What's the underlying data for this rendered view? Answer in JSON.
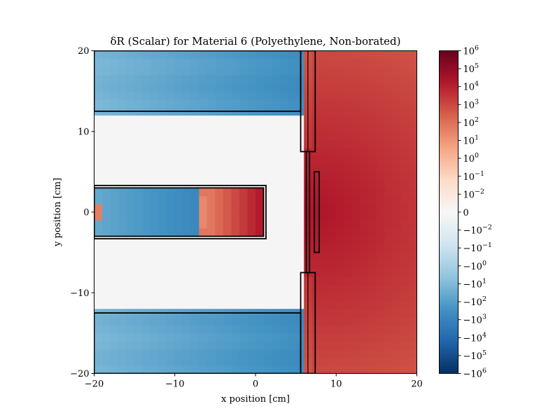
{
  "chart_data": {
    "type": "heatmap",
    "title": "δR (Scalar) for Material 6 (Polyethylene, Non-borated)",
    "xlabel": "x position [cm]",
    "ylabel": "y position [cm]",
    "xlim": [
      -20,
      20
    ],
    "ylim": [
      -20,
      20
    ],
    "x_ticks": [
      {
        "value": -20,
        "label": "−20"
      },
      {
        "value": -10,
        "label": "−10"
      },
      {
        "value": 0,
        "label": "0"
      },
      {
        "value": 10,
        "label": "10"
      },
      {
        "value": 20,
        "label": "20"
      }
    ],
    "y_ticks": [
      {
        "value": -20,
        "label": "−20"
      },
      {
        "value": -10,
        "label": "−10"
      },
      {
        "value": 0,
        "label": "0"
      },
      {
        "value": 10,
        "label": "10"
      },
      {
        "value": 20,
        "label": "20"
      }
    ],
    "grid": false,
    "colormap": "RdBu_r (symlog)",
    "colorbar": {
      "scale": "symlog",
      "range": [
        -1000000,
        1000000
      ],
      "ticks": [
        {
          "base": "10",
          "exp": "6",
          "sign": ""
        },
        {
          "base": "10",
          "exp": "5",
          "sign": ""
        },
        {
          "base": "10",
          "exp": "4",
          "sign": ""
        },
        {
          "base": "10",
          "exp": "3",
          "sign": ""
        },
        {
          "base": "10",
          "exp": "2",
          "sign": ""
        },
        {
          "base": "10",
          "exp": "1",
          "sign": ""
        },
        {
          "base": "10",
          "exp": "0",
          "sign": ""
        },
        {
          "base": "10",
          "exp": "−1",
          "sign": ""
        },
        {
          "base": "10",
          "exp": "−2",
          "sign": ""
        },
        {
          "base": "0",
          "exp": "",
          "sign": ""
        },
        {
          "base": "10",
          "exp": "−2",
          "sign": "−"
        },
        {
          "base": "10",
          "exp": "−1",
          "sign": "−"
        },
        {
          "base": "10",
          "exp": "0",
          "sign": "−"
        },
        {
          "base": "10",
          "exp": "1",
          "sign": "−"
        },
        {
          "base": "10",
          "exp": "2",
          "sign": "−"
        },
        {
          "base": "10",
          "exp": "3",
          "sign": "−"
        },
        {
          "base": "10",
          "exp": "4",
          "sign": "−"
        },
        {
          "base": "10",
          "exp": "5",
          "sign": "−"
        },
        {
          "base": "10",
          "exp": "6",
          "sign": "−"
        }
      ]
    },
    "regions": [
      {
        "name": "upper-left-block",
        "x": [
          -20,
          5.6
        ],
        "y": [
          12.5,
          20
        ],
        "value_range": [
          -600,
          -20
        ],
        "trend": "more negative toward x≈5"
      },
      {
        "name": "lower-left-block",
        "x": [
          -20,
          5.6
        ],
        "y": [
          -20,
          -12.5
        ],
        "value_range": [
          -600,
          -20
        ],
        "trend": "more negative toward x≈5"
      },
      {
        "name": "center-rod-negative",
        "x": [
          -20,
          -7
        ],
        "y": [
          -3,
          3
        ],
        "value_range": [
          -1000,
          -30
        ]
      },
      {
        "name": "center-rod-positive",
        "x": [
          -7,
          1.5
        ],
        "y": [
          -3,
          3
        ],
        "value_range": [
          3,
          30000
        ],
        "trend": "rising toward x≈1"
      },
      {
        "name": "right-slab",
        "x": [
          5.6,
          20
        ],
        "y": [
          -20,
          20
        ],
        "peak": {
          "x": 8,
          "y": 0,
          "value": 20000
        },
        "value_range": [
          5,
          20000
        ]
      },
      {
        "name": "central-void",
        "x": [
          -20,
          5.6
        ],
        "y": [
          -12.5,
          12.5
        ],
        "value": 0
      }
    ],
    "outlines": [
      {
        "name": "upper-shield-block",
        "x": [
          -20,
          5.6
        ],
        "y": [
          12.5,
          20
        ]
      },
      {
        "name": "lower-shield-block",
        "x": [
          -20,
          5.6
        ],
        "y": [
          -20,
          -12.5
        ]
      },
      {
        "name": "rod-outer",
        "x": [
          -20,
          1.3
        ],
        "y": [
          -3.3,
          3.3
        ]
      },
      {
        "name": "rod-inner",
        "x": [
          -20,
          1.0
        ],
        "y": [
          -3.0,
          3.0
        ]
      },
      {
        "name": "upper-plate",
        "x": [
          5.6,
          7.4
        ],
        "y": [
          7.5,
          20
        ]
      },
      {
        "name": "lower-plate",
        "x": [
          5.6,
          7.4
        ],
        "y": [
          -20,
          -7.5
        ]
      },
      {
        "name": "thin-plate",
        "x": [
          6.3,
          6.7
        ],
        "y": [
          -7.5,
          7.5
        ]
      },
      {
        "name": "detector-strip",
        "x": [
          7.3,
          7.9
        ],
        "y": [
          -5,
          5
        ]
      },
      {
        "name": "plate-divider",
        "x": [
          6.5,
          6.5
        ],
        "y": [
          7.5,
          20
        ]
      },
      {
        "name": "plate-divider-low",
        "x": [
          6.5,
          6.5
        ],
        "y": [
          -20,
          -7.5
        ]
      }
    ]
  }
}
